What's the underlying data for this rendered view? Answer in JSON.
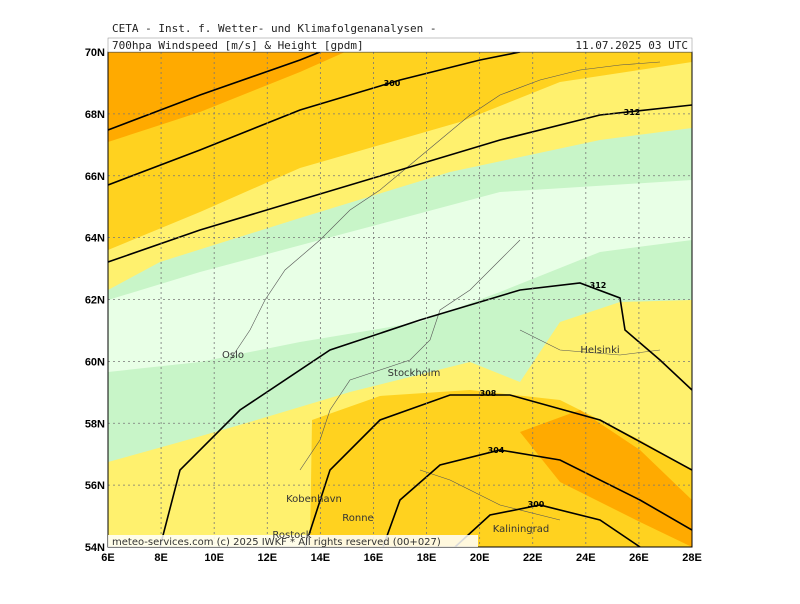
{
  "header": {
    "title": "CETA - Inst. f. Wetter- und Klimafolgenanalysen -",
    "subtitle": "700hpa Windspeed [m/s] & Height [gpdm]",
    "datetime": "11.07.2025 03 UTC"
  },
  "lat_labels": [
    "70N",
    "68N",
    "66N",
    "64N",
    "62N",
    "60N",
    "58N",
    "56N",
    "54N"
  ],
  "lon_labels": [
    "6E",
    "8E",
    "10E",
    "12E",
    "14E",
    "16E",
    "18E",
    "20E",
    "22E",
    "24E",
    "26E",
    "28E"
  ],
  "contour_labels": [
    "300",
    "312",
    "312",
    "308",
    "304",
    "300"
  ],
  "cities": [
    "Oslo",
    "Stockholm",
    "Helsinki",
    "Kobenhavn",
    "Ronne",
    "Rostock",
    "Kaliningrad"
  ],
  "footer": "meteo-services.com (c) 2025 IWKF * All rights reserved (00+027)"
}
